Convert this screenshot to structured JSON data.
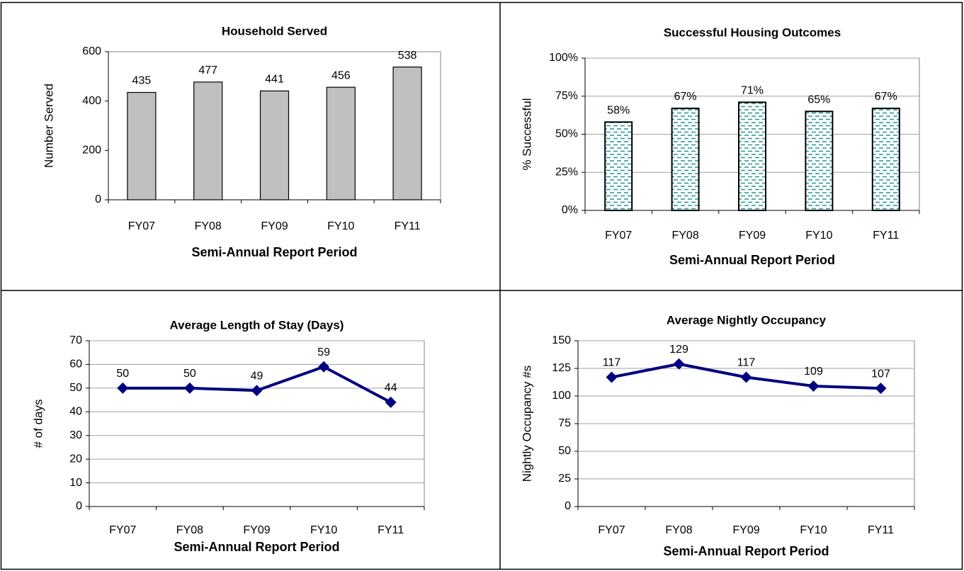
{
  "chart_data": [
    {
      "type": "bar",
      "title": "Household Served",
      "x_label": "Semi-Annual Report Period",
      "y_label": "Number Served",
      "categories": [
        "FY07",
        "FY08",
        "FY09",
        "FY10",
        "FY11"
      ],
      "values": [
        435,
        477,
        441,
        456,
        538
      ],
      "color": "#c0c0c0",
      "ylim": [
        0,
        600
      ],
      "yticks": [
        0,
        200,
        400,
        600
      ],
      "grid": false
    },
    {
      "type": "bar",
      "title": "Successful Housing Outcomes",
      "x_label": "Semi-Annual Report Period",
      "y_label": "% Successful",
      "categories": [
        "FY07",
        "FY08",
        "FY09",
        "FY10",
        "FY11"
      ],
      "values": [
        58,
        67,
        71,
        65,
        67
      ],
      "value_labels": [
        "58%",
        "67%",
        "71%",
        "65%",
        "67%"
      ],
      "color": "#339999",
      "pattern": "dashes",
      "ylim": [
        0,
        100
      ],
      "yticks": [
        {
          "value": 0,
          "label": "0%"
        },
        {
          "value": 25,
          "label": "25%"
        },
        {
          "value": 50,
          "label": "50%"
        },
        {
          "value": 75,
          "label": "75%"
        },
        {
          "value": 100,
          "label": "100%"
        }
      ],
      "grid": true
    },
    {
      "type": "line",
      "title": "Average Length of Stay (Days)",
      "x_label": "Semi-Annual Report Period",
      "y_label": "# of days",
      "categories": [
        "FY07",
        "FY08",
        "FY09",
        "FY10",
        "FY11"
      ],
      "values": [
        50,
        50,
        49,
        59,
        44
      ],
      "color": "#000080",
      "ylim": [
        0,
        70
      ],
      "yticks": [
        0,
        10,
        20,
        30,
        40,
        50,
        60,
        70
      ],
      "grid": true
    },
    {
      "type": "line",
      "title": "Average Nightly Occupancy",
      "x_label": "Semi-Annual Report Period",
      "y_label": "Nightly Occupancy #s",
      "categories": [
        "FY07",
        "FY08",
        "FY09",
        "FY10",
        "FY11"
      ],
      "values": [
        117,
        129,
        117,
        109,
        107
      ],
      "color": "#000080",
      "ylim": [
        0,
        150
      ],
      "yticks": [
        0,
        25,
        50,
        75,
        100,
        125,
        150
      ],
      "grid": true
    }
  ]
}
